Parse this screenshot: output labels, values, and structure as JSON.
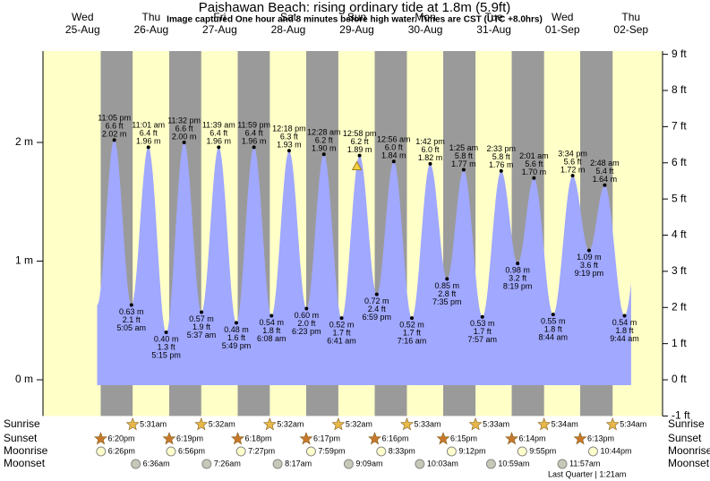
{
  "chart_data": {
    "type": "tide",
    "title": "Paishawan Beach: rising  ordinary tide at 1.8m (5.9ft)",
    "subtitle": "Image captured One hour and 8 minutes before high water. Times are CST (UTC +8.0hrs)",
    "days": [
      {
        "weekday": "Wed",
        "date": "25-Aug"
      },
      {
        "weekday": "Thu",
        "date": "26-Aug"
      },
      {
        "weekday": "Fri",
        "date": "27-Aug"
      },
      {
        "weekday": "Sat",
        "date": "28-Aug"
      },
      {
        "weekday": "Sun",
        "date": "29-Aug"
      },
      {
        "weekday": "Mon",
        "date": "30-Aug"
      },
      {
        "weekday": "Tue",
        "date": "31-Aug"
      },
      {
        "weekday": "Wed",
        "date": "01-Sep"
      },
      {
        "weekday": "Thu",
        "date": "02-Sep"
      }
    ],
    "ylim": [
      -0.3048,
      2.77
    ],
    "yticks": [
      {
        "value": 0,
        "label": "0 m"
      },
      {
        "value": 1,
        "label": "1 m"
      },
      {
        "value": 2,
        "label": "2 m"
      }
    ],
    "y2lim": [
      -1,
      9.09
    ],
    "y2ticks": [
      {
        "value": -1,
        "label": "-1 ft"
      },
      {
        "value": 0,
        "label": "0 ft"
      },
      {
        "value": 1,
        "label": "1 ft"
      },
      {
        "value": 2,
        "label": "2 ft"
      },
      {
        "value": 3,
        "label": "3 ft"
      },
      {
        "value": 4,
        "label": "4 ft"
      },
      {
        "value": 5,
        "label": "5 ft"
      },
      {
        "value": 6,
        "label": "6 ft"
      },
      {
        "value": 7,
        "label": "7 ft"
      },
      {
        "value": 8,
        "label": "8 ft"
      },
      {
        "value": 9,
        "label": "9 ft"
      }
    ],
    "tides": [
      {
        "time": "11:05 pm",
        "height": 2.02,
        "height_label": "2.02 m",
        "height_ft": 6.6,
        "height_ft_label": "6.6 ft"
      },
      {
        "time": "5:05 am",
        "height": 0.63,
        "height_label": "0.63 m",
        "height_ft": 2.1,
        "height_ft_label": "2.1 ft"
      },
      {
        "time": "11:01 am",
        "height": 1.96,
        "height_label": "1.96 m",
        "height_ft": 6.4,
        "height_ft_label": "6.4 ft"
      },
      {
        "time": "5:15 pm",
        "height": 0.4,
        "height_label": "0.40 m",
        "height_ft": 1.3,
        "height_ft_label": "1.3 ft"
      },
      {
        "time": "11:32 pm",
        "height": 2.0,
        "height_label": "2.00 m",
        "height_ft": 6.6,
        "height_ft_label": "6.6 ft"
      },
      {
        "time": "5:37 am",
        "height": 0.57,
        "height_label": "0.57 m",
        "height_ft": 1.9,
        "height_ft_label": "1.9 ft"
      },
      {
        "time": "11:39 am",
        "height": 1.96,
        "height_label": "1.96 m",
        "height_ft": 6.4,
        "height_ft_label": "6.4 ft"
      },
      {
        "time": "5:49 pm",
        "height": 0.48,
        "height_label": "0.48 m",
        "height_ft": 1.6,
        "height_ft_label": "1.6 ft"
      },
      {
        "time": "11:59 pm",
        "height": 1.96,
        "height_label": "1.96 m",
        "height_ft": 6.4,
        "height_ft_label": "6.4 ft"
      },
      {
        "time": "6:08 am",
        "height": 0.54,
        "height_label": "0.54 m",
        "height_ft": 1.8,
        "height_ft_label": "1.8 ft"
      },
      {
        "time": "12:18 pm",
        "height": 1.93,
        "height_label": "1.93 m",
        "height_ft": 6.3,
        "height_ft_label": "6.3 ft"
      },
      {
        "time": "6:23 pm",
        "height": 0.6,
        "height_label": "0.60 m",
        "height_ft": 2.0,
        "height_ft_label": "2.0 ft"
      },
      {
        "time": "12:28 am",
        "height": 1.9,
        "height_label": "1.90 m",
        "height_ft": 6.2,
        "height_ft_label": "6.2 ft"
      },
      {
        "time": "6:41 am",
        "height": 0.52,
        "height_label": "0.52 m",
        "height_ft": 1.7,
        "height_ft_label": "1.7 ft"
      },
      {
        "time": "12:58 pm",
        "height": 1.89,
        "height_label": "1.89 m",
        "height_ft": 6.2,
        "height_ft_label": "6.2 ft"
      },
      {
        "time": "6:59 pm",
        "height": 0.72,
        "height_label": "0.72 m",
        "height_ft": 2.4,
        "height_ft_label": "2.4 ft"
      },
      {
        "time": "12:56 am",
        "height": 1.84,
        "height_label": "1.84 m",
        "height_ft": 6.0,
        "height_ft_label": "6.0 ft"
      },
      {
        "time": "7:16 am",
        "height": 0.52,
        "height_label": "0.52 m",
        "height_ft": 1.7,
        "height_ft_label": "1.7 ft"
      },
      {
        "time": "1:42 pm",
        "height": 1.82,
        "height_label": "1.82 m",
        "height_ft": 6.0,
        "height_ft_label": "6.0 ft"
      },
      {
        "time": "7:35 pm",
        "height": 0.85,
        "height_label": "0.85 m",
        "height_ft": 2.8,
        "height_ft_label": "2.8 ft"
      },
      {
        "time": "1:25 am",
        "height": 1.77,
        "height_label": "1.77 m",
        "height_ft": 5.8,
        "height_ft_label": "5.8 ft"
      },
      {
        "time": "7:57 am",
        "height": 0.53,
        "height_label": "0.53 m",
        "height_ft": 1.7,
        "height_ft_label": "1.7 ft"
      },
      {
        "time": "2:33 pm",
        "height": 1.76,
        "height_label": "1.76 m",
        "height_ft": 5.8,
        "height_ft_label": "5.8 ft"
      },
      {
        "time": "8:19 pm",
        "height": 0.98,
        "height_label": "0.98 m",
        "height_ft": 3.2,
        "height_ft_label": "3.2 ft"
      },
      {
        "time": "2:01 am",
        "height": 1.7,
        "height_label": "1.70 m",
        "height_ft": 5.6,
        "height_ft_label": "5.6 ft"
      },
      {
        "time": "8:44 am",
        "height": 0.55,
        "height_label": "0.55 m",
        "height_ft": 1.8,
        "height_ft_label": "1.8 ft"
      },
      {
        "time": "3:34 pm",
        "height": 1.72,
        "height_label": "1.72 m",
        "height_ft": 5.6,
        "height_ft_label": "5.6 ft"
      },
      {
        "time": "9:19 pm",
        "height": 1.09,
        "height_label": "1.09 m",
        "height_ft": 3.6,
        "height_ft_label": "3.6 ft"
      },
      {
        "time": "2:48 am",
        "height": 1.64,
        "height_label": "1.64 m",
        "height_ft": 5.4,
        "height_ft_label": "5.4 ft"
      },
      {
        "time": "9:44 am",
        "height": 0.54,
        "height_label": "0.54 m",
        "height_ft": 1.8,
        "height_ft_label": "1.8 ft"
      }
    ],
    "current": {
      "height": 1.8
    },
    "colors": {
      "day": "#ffffc8",
      "night": "#9a9a9a",
      "water": "#a0a8ff",
      "days_text": "#ff0000"
    },
    "rows": [
      {
        "name": "Sunrise",
        "times": [
          "5:31am",
          "5:32am",
          "5:32am",
          "5:32am",
          "5:33am",
          "5:33am",
          "5:34am",
          "5:34am"
        ]
      },
      {
        "name": "Sunset",
        "times": [
          "6:20pm",
          "6:19pm",
          "6:18pm",
          "6:17pm",
          "6:16pm",
          "6:15pm",
          "6:14pm",
          "6:13pm"
        ]
      },
      {
        "name": "Moonrise",
        "times": [
          "6:26pm",
          "6:56pm",
          "7:27pm",
          "7:59pm",
          "8:33pm",
          "9:12pm",
          "9:55pm",
          "10:44pm"
        ]
      },
      {
        "name": "Moonset",
        "times": [
          "6:36am",
          "7:26am",
          "8:17am",
          "9:09am",
          "10:03am",
          "10:59am",
          "11:57am"
        ]
      }
    ],
    "moon_phase": "Last Quarter | 1:21am"
  }
}
